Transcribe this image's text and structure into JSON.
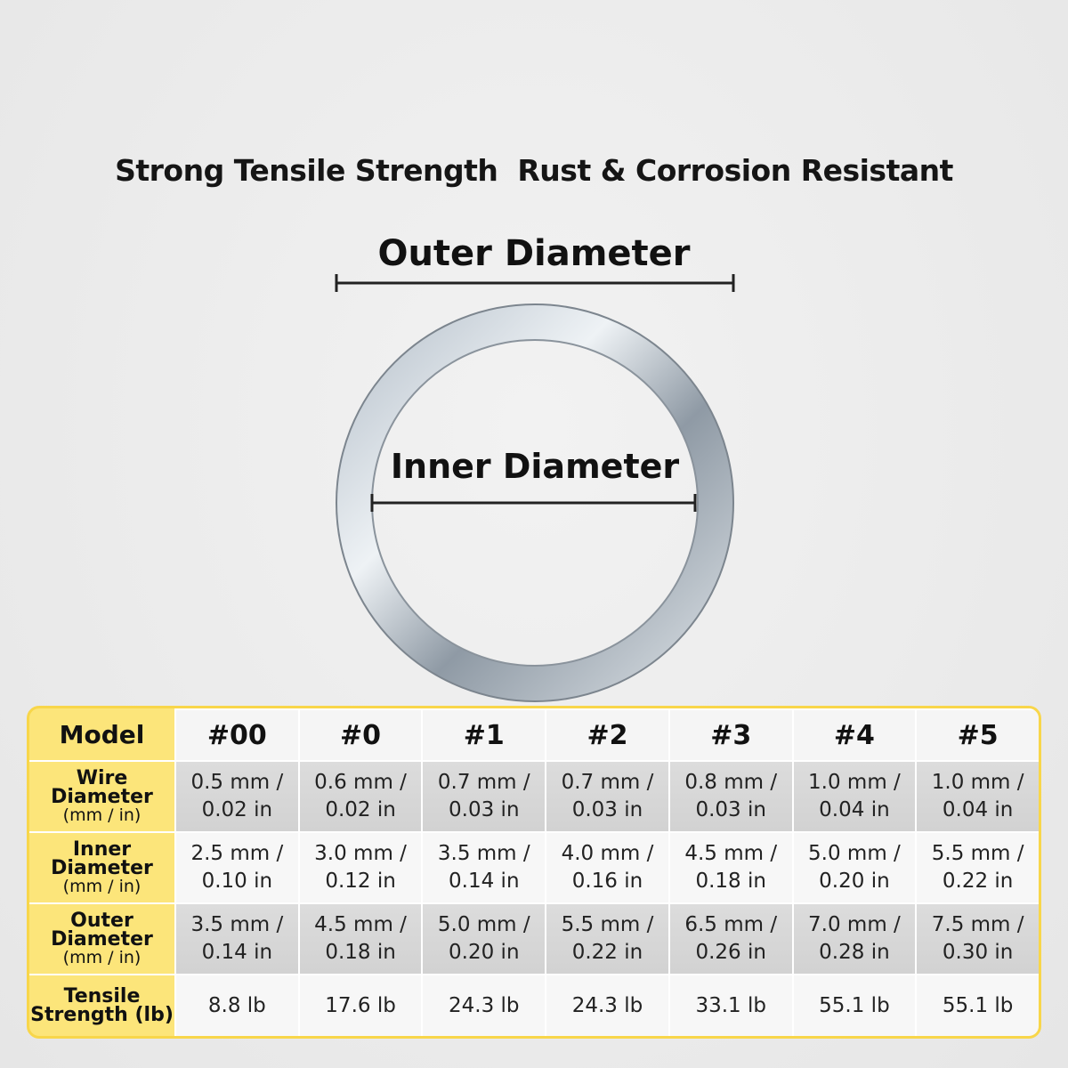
{
  "headline": "Strong Tensile Strength  Rust & Corrosion Resistant",
  "diagram": {
    "outer_label": "Outer Diameter",
    "inner_label": "Inner Diameter"
  },
  "table": {
    "corner": "Model",
    "models": [
      "#00",
      "#0",
      "#1",
      "#2",
      "#3",
      "#4",
      "#5"
    ],
    "rows": [
      {
        "name": [
          "Wire",
          "Diameter"
        ],
        "unit": "(mm / in)",
        "cells": [
          [
            "0.5 mm /",
            "0.02 in"
          ],
          [
            "0.6 mm /",
            "0.02 in"
          ],
          [
            "0.7 mm /",
            "0.03 in"
          ],
          [
            "0.7 mm /",
            "0.03 in"
          ],
          [
            "0.8 mm /",
            "0.03 in"
          ],
          [
            "1.0 mm /",
            "0.04 in"
          ],
          [
            "1.0 mm /",
            "0.04 in"
          ]
        ]
      },
      {
        "name": [
          "Inner",
          "Diameter"
        ],
        "unit": "(mm / in)",
        "cells": [
          [
            "2.5 mm /",
            "0.10 in"
          ],
          [
            "3.0 mm /",
            "0.12 in"
          ],
          [
            "3.5 mm /",
            "0.14 in"
          ],
          [
            "4.0 mm /",
            "0.16 in"
          ],
          [
            "4.5 mm /",
            "0.18 in"
          ],
          [
            "5.0 mm /",
            "0.20 in"
          ],
          [
            "5.5 mm /",
            "0.22 in"
          ]
        ]
      },
      {
        "name": [
          "Outer",
          "Diameter"
        ],
        "unit": "(mm / in)",
        "cells": [
          [
            "3.5 mm /",
            "0.14 in"
          ],
          [
            "4.5 mm /",
            "0.18 in"
          ],
          [
            "5.0 mm /",
            "0.20 in"
          ],
          [
            "5.5 mm /",
            "0.22 in"
          ],
          [
            "6.5 mm /",
            "0.26 in"
          ],
          [
            "7.0 mm /",
            "0.28 in"
          ],
          [
            "7.5 mm /",
            "0.30 in"
          ]
        ]
      },
      {
        "name": [
          "Tensile",
          "Strength (lb)"
        ],
        "cells": [
          [
            "8.8 lb"
          ],
          [
            "17.6 lb"
          ],
          [
            "24.3 lb"
          ],
          [
            "24.3 lb"
          ],
          [
            "33.1 lb"
          ],
          [
            "55.1 lb"
          ],
          [
            "55.1 lb"
          ]
        ]
      }
    ]
  }
}
